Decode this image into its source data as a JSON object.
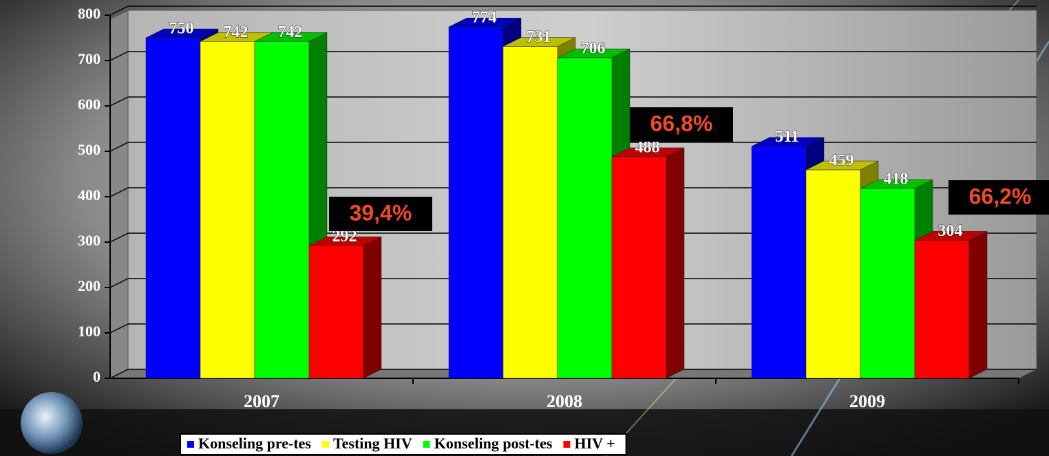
{
  "chart_data": {
    "type": "bar3d",
    "categories": [
      "2007",
      "2008",
      "2009"
    ],
    "series": [
      {
        "name": "Konseling pre-tes",
        "color": "#0000ff",
        "values": [
          750,
          774,
          511
        ]
      },
      {
        "name": "Testing HIV",
        "color": "#ffff00",
        "values": [
          742,
          731,
          459
        ]
      },
      {
        "name": "Konseling post-tes",
        "color": "#00ff00",
        "values": [
          742,
          706,
          418
        ]
      },
      {
        "name": "HIV +",
        "color": "#ff0000",
        "values": [
          292,
          488,
          304
        ]
      }
    ],
    "annotations": [
      "39,4%",
      "66,8%",
      "66,2%"
    ],
    "ylim": [
      0,
      800
    ],
    "yticks": [
      0,
      100,
      200,
      300,
      400,
      500,
      600,
      700,
      800
    ],
    "grid": true,
    "legend": "bottom"
  }
}
